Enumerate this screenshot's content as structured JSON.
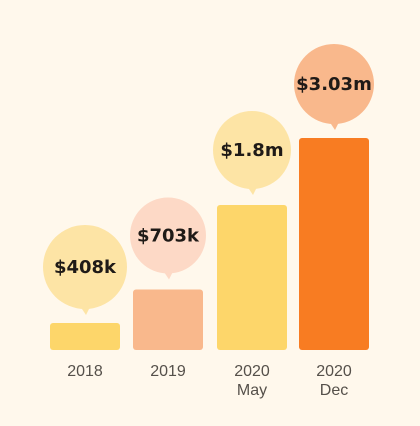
{
  "chart_data": {
    "type": "bar",
    "categories": [
      {
        "line1": "2018",
        "line2": ""
      },
      {
        "line1": "2019",
        "line2": ""
      },
      {
        "line1": "2020",
        "line2": "May"
      },
      {
        "line1": "2020",
        "line2": "Dec"
      }
    ],
    "values": [
      408000,
      703000,
      1800000,
      3030000
    ],
    "value_labels": [
      "$408k",
      "$703k",
      "$1.8m",
      "$3.03m"
    ],
    "bar_colors": [
      "#fdd66a",
      "#f9b88c",
      "#fdd66a",
      "#f87c22"
    ],
    "bubble_colors": [
      "#fde4a5",
      "#fdd9c6",
      "#fde4a5",
      "#f9b88c"
    ],
    "background": "#fff8ec",
    "ylim": [
      0,
      3030000
    ],
    "grid": false,
    "legend": "none"
  }
}
